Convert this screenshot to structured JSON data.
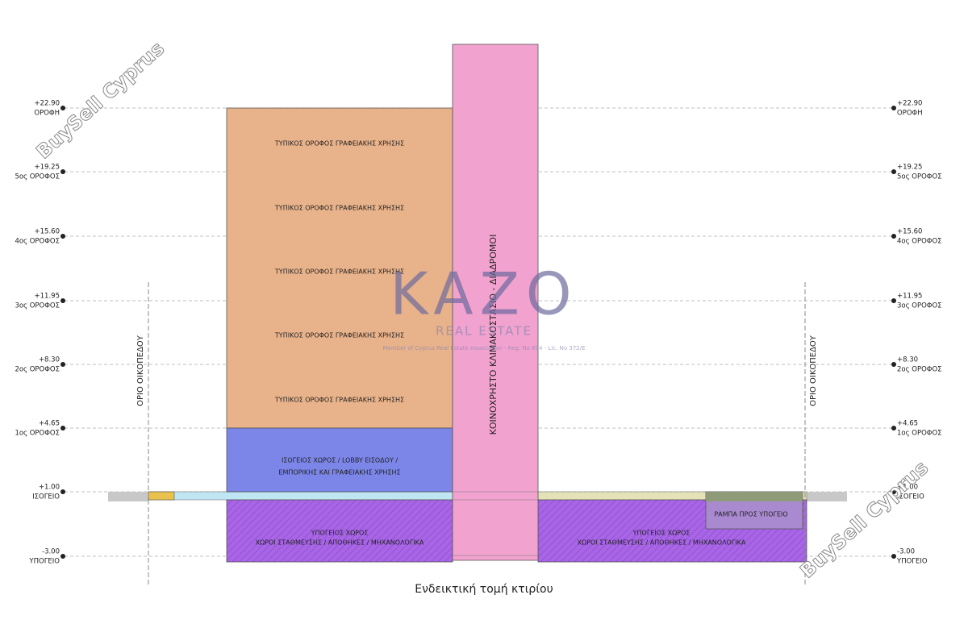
{
  "levels": [
    {
      "elevation": "+22.90",
      "name": "ΟΡΟΦΗ"
    },
    {
      "elevation": "+19.25",
      "name": "5ος ΟΡΟΦΟΣ"
    },
    {
      "elevation": "+15.60",
      "name": "4ος ΟΡΟΦΟΣ"
    },
    {
      "elevation": "+11.95",
      "name": "3ος ΟΡΟΦΟΣ"
    },
    {
      "elevation": "+8.30",
      "name": "2ος ΟΡΟΦΟΣ"
    },
    {
      "elevation": "+4.65",
      "name": "1ος ΟΡΟΦΟΣ"
    },
    {
      "elevation": "+1.00",
      "name": "ΙΣΟΓΕΙΟ"
    },
    {
      "elevation": "-3.00",
      "name": "ΥΠΟΓΕΙΟ"
    }
  ],
  "office_floors": [
    "ΤΥΠΙΚΟΣ ΟΡΟΦΟΣ ΓΡΑΦΕΙΑΚΗΣ ΧΡΗΣΗΣ",
    "ΤΥΠΙΚΟΣ ΟΡΟΦΟΣ ΓΡΑΦΕΙΑΚΗΣ ΧΡΗΣΗΣ",
    "ΤΥΠΙΚΟΣ ΟΡΟΦΟΣ ΓΡΑΦΕΙΑΚΗΣ ΧΡΗΣΗΣ",
    "ΤΥΠΙΚΟΣ ΟΡΟΦΟΣ ΓΡΑΦΕΙΑΚΗΣ ΧΡΗΣΗΣ",
    "ΤΥΠΙΚΟΣ ΟΡΟΦΟΣ ΓΡΑΦΕΙΑΚΗΣ ΧΡΗΣΗΣ"
  ],
  "ground_floor": [
    "ΙΣΟΓΕΙΟΣ ΧΩΡΟΣ / LOBBY ΕΙΣΟΔΟΥ /",
    "ΕΜΠΟΡΙΚΗΣ ΚΑΙ ΓΡΑΦΕΙΑΚΗΣ ΧΡΗΣΗΣ"
  ],
  "basement_left": [
    "ΥΠΟΓΕΙΟΣ ΧΩΡΟΣ",
    "ΧΩΡΟΙ ΣΤΑΘΜΕΥΣΗΣ / ΑΠΟΘΗΚΕΣ / ΜΗΧΑΝΟΛΟΓΙΚΑ"
  ],
  "basement_right": [
    "ΥΠΟΓΕΙΟΣ ΧΩΡΟΣ",
    "ΧΩΡΟΙ ΣΤΑΘΜΕΥΣΗΣ / ΑΠΟΘΗΚΕΣ / ΜΗΧΑΝΟΛΟΓΙΚΑ"
  ],
  "core": "ΚΟΙΝΟΧΡΗΣΤΟ ΚΛΙΜΑΚΟΣΤΑΣΙΟ - ΔΙΑΔΡΟΜΟΙ",
  "ramp": "ΡΑΜΠΑ ΠΡΟΣ ΥΠΟΓΕΙΟ",
  "plot_boundary": [
    "ΟΡΙΟ ΟΙΚΟΠΕΔΟΥ",
    "ΟΡΙΟ ΟΙΚΟΠΕΔΟΥ"
  ],
  "caption": "Ενδεικτική τομή κτιρίου",
  "watermarks": {
    "brand": [
      "BuySell Cyprus",
      "BuySell Cyprus"
    ],
    "logo": "KAZO",
    "logo_sub": "REAL ESTATE",
    "logo_note": "Member of Cyprus Real Estate Association - Reg. No 694 - Lic. No 372/E"
  }
}
